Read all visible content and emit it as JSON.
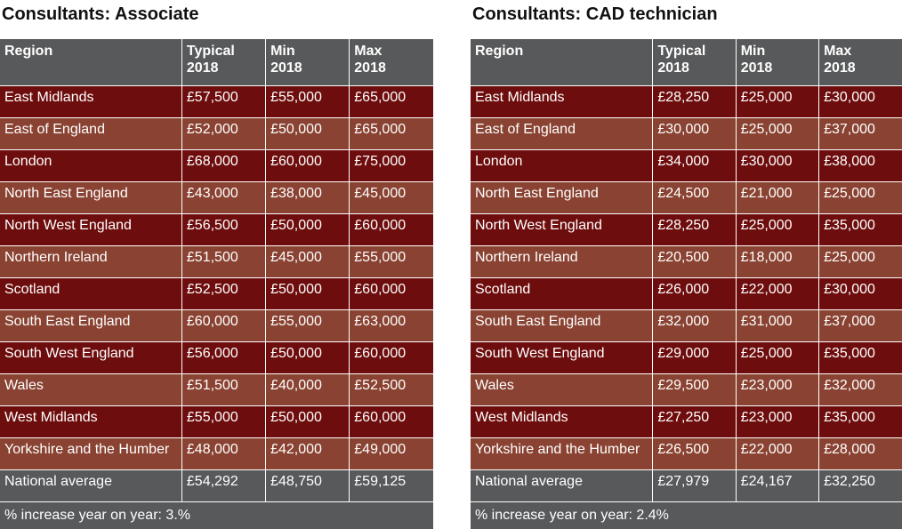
{
  "tables": [
    {
      "title": "Consultants: Associate",
      "headers": [
        "Region",
        "Typical\n2018",
        "Min\n2018",
        "Max\n2018"
      ],
      "rows": [
        [
          "East Midlands",
          "£57,500",
          "£55,000",
          "£65,000"
        ],
        [
          "East of England",
          "£52,000",
          "£50,000",
          "£65,000"
        ],
        [
          "London",
          "£68,000",
          "£60,000",
          "£75,000"
        ],
        [
          "North East England",
          "£43,000",
          "£38,000",
          "£45,000"
        ],
        [
          "North West England",
          "£56,500",
          "£50,000",
          "£60,000"
        ],
        [
          "Northern Ireland",
          "£51,500",
          "£45,000",
          "£55,000"
        ],
        [
          "Scotland",
          "£52,500",
          "£50,000",
          "£60,000"
        ],
        [
          "South East England",
          "£60,000",
          "£55,000",
          "£63,000"
        ],
        [
          "South West England",
          "£56,000",
          "£50,000",
          "£60,000"
        ],
        [
          "Wales",
          "£51,500",
          "£40,000",
          "£52,500"
        ],
        [
          "West Midlands",
          "£55,000",
          "£50,000",
          "£60,000"
        ],
        [
          "Yorkshire and the Humber",
          "£48,000",
          "£42,000",
          "£49,000"
        ]
      ],
      "average": [
        "National average",
        "£54,292",
        "£48,750",
        "£59,125"
      ],
      "footer": "% increase year on year:  3.%"
    },
    {
      "title": "Consultants: CAD technician",
      "headers": [
        "Region",
        "Typical\n2018",
        "Min\n2018",
        "Max\n2018"
      ],
      "rows": [
        [
          "East Midlands",
          "£28,250",
          "£25,000",
          "£30,000"
        ],
        [
          "East of England",
          "£30,000",
          "£25,000",
          "£37,000"
        ],
        [
          "London",
          "£34,000",
          "£30,000",
          "£38,000"
        ],
        [
          "North East England",
          "£24,500",
          "£21,000",
          "£25,000"
        ],
        [
          "North West England",
          "£28,250",
          "£25,000",
          "£35,000"
        ],
        [
          "Northern Ireland",
          "£20,500",
          "£18,000",
          "£25,000"
        ],
        [
          "Scotland",
          "£26,000",
          "£22,000",
          "£30,000"
        ],
        [
          "South East England",
          "£32,000",
          "£31,000",
          "£37,000"
        ],
        [
          "South West England",
          "£29,000",
          "£25,000",
          "£35,000"
        ],
        [
          "Wales",
          "£29,500",
          "£23,000",
          "£32,000"
        ],
        [
          "West Midlands",
          "£27,250",
          "£23,000",
          "£35,000"
        ],
        [
          "Yorkshire and the Humber",
          "£26,500",
          "£22,000",
          "£28,000"
        ]
      ],
      "average": [
        "National average",
        "£27,979",
        "£24,167",
        "£32,250"
      ],
      "footer": "% increase year on year:  2.4%"
    }
  ]
}
